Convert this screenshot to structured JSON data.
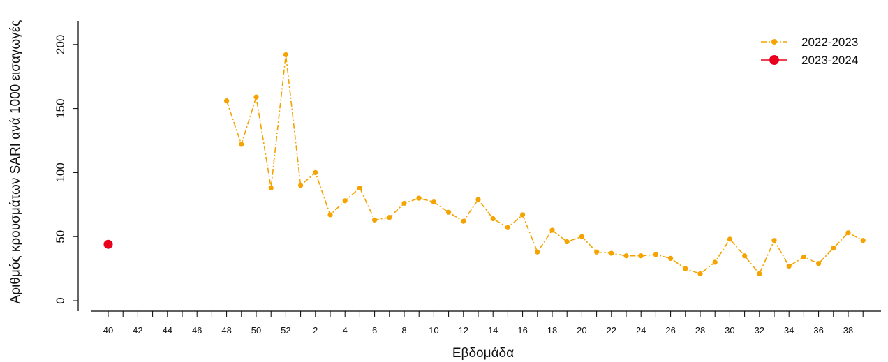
{
  "chart_data": {
    "type": "line",
    "title": "",
    "xlabel": "Εβδομάδα",
    "ylabel": "Αριθμός κρουσμάτων SARI ανά 1000 εισαγωγές",
    "ylim": [
      0,
      210
    ],
    "yticks": [
      0,
      50,
      100,
      150,
      200
    ],
    "grid": false,
    "legend_position": "top-right",
    "x_weeks": [
      "40",
      "41",
      "42",
      "43",
      "44",
      "45",
      "46",
      "47",
      "48",
      "49",
      "50",
      "51",
      "52",
      "1",
      "2",
      "3",
      "4",
      "5",
      "6",
      "7",
      "8",
      "9",
      "10",
      "11",
      "12",
      "13",
      "14",
      "15",
      "16",
      "17",
      "18",
      "19",
      "20",
      "21",
      "22",
      "23",
      "24",
      "25",
      "26",
      "27",
      "28",
      "29",
      "30",
      "31",
      "32",
      "33",
      "34",
      "35",
      "36",
      "37",
      "38",
      "39"
    ],
    "x_tick_labels": [
      "40",
      "",
      "42",
      "",
      "44",
      "",
      "46",
      "",
      "48",
      "",
      "50",
      "",
      "52",
      "",
      "2",
      "",
      "4",
      "",
      "6",
      "",
      "8",
      "",
      "10",
      "",
      "12",
      "",
      "14",
      "",
      "16",
      "",
      "18",
      "",
      "20",
      "",
      "22",
      "",
      "24",
      "",
      "26",
      "",
      "28",
      "",
      "30",
      "",
      "32",
      "",
      "34",
      "",
      "36",
      "",
      "38",
      ""
    ],
    "series": [
      {
        "name": "2022-2023",
        "color": "#f5a300",
        "line_style": "dashdot",
        "values": [
          null,
          null,
          null,
          null,
          null,
          null,
          null,
          null,
          156,
          122,
          159,
          88,
          192,
          90,
          100,
          67,
          78,
          88,
          63,
          65,
          76,
          80,
          77,
          69,
          62,
          79,
          64,
          57,
          67,
          38,
          55,
          46,
          50,
          38,
          37,
          35,
          35,
          36,
          33,
          25,
          21,
          30,
          48,
          35,
          21,
          47,
          27,
          34,
          29,
          41,
          53,
          47
        ]
      },
      {
        "name": "2023-2024",
        "color": "#e8001c",
        "line_style": "solid",
        "values": [
          44,
          null,
          null,
          null,
          null,
          null,
          null,
          null,
          null,
          null,
          null,
          null,
          null,
          null,
          null,
          null,
          null,
          null,
          null,
          null,
          null,
          null,
          null,
          null,
          null,
          null,
          null,
          null,
          null,
          null,
          null,
          null,
          null,
          null,
          null,
          null,
          null,
          null,
          null,
          null,
          null,
          null,
          null,
          null,
          null,
          null,
          null,
          null,
          null,
          null,
          null,
          null
        ]
      }
    ]
  }
}
